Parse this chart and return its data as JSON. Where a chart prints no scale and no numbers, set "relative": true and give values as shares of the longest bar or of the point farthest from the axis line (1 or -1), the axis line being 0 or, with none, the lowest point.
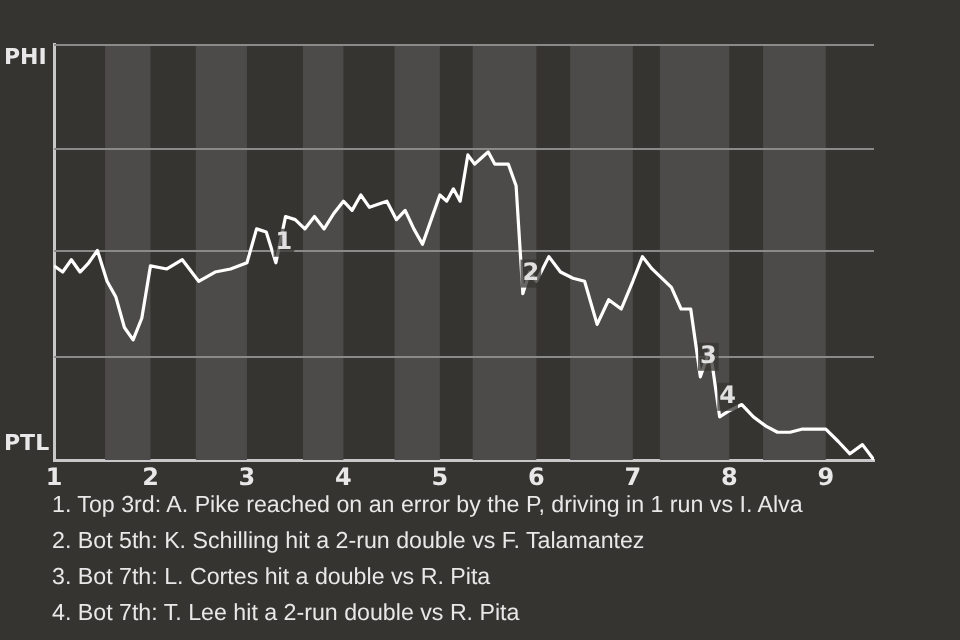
{
  "chart_data": {
    "type": "line",
    "relative": true,
    "x": [
      1,
      1.09,
      1.18,
      1.27,
      1.36,
      1.45,
      1.55,
      1.64,
      1.73,
      1.82,
      1.91,
      2,
      2.17,
      2.33,
      2.5,
      2.67,
      2.83,
      3,
      3.1,
      3.2,
      3.3,
      3.4,
      3.5,
      3.6,
      3.7,
      3.8,
      3.9,
      4,
      4.09,
      4.18,
      4.27,
      4.36,
      4.45,
      4.55,
      4.64,
      4.73,
      4.82,
      4.91,
      5,
      5.07,
      5.14,
      5.21,
      5.29,
      5.36,
      5.43,
      5.5,
      5.57,
      5.64,
      5.71,
      5.79,
      5.86,
      5.93,
      6,
      6.13,
      6.25,
      6.38,
      6.5,
      6.63,
      6.75,
      6.88,
      7,
      7.1,
      7.2,
      7.3,
      7.4,
      7.5,
      7.6,
      7.7,
      7.8,
      7.9,
      8,
      8.13,
      8.25,
      8.38,
      8.5,
      8.63,
      8.75,
      8.88,
      9,
      9.13,
      9.25,
      9.38,
      9.5
    ],
    "series": [
      {
        "color": "#ffffff",
        "values": [
          0.63,
          0.61,
          0.65,
          0.61,
          0.64,
          0.68,
          0.58,
          0.53,
          0.43,
          0.39,
          0.46,
          0.63,
          0.62,
          0.65,
          0.58,
          0.61,
          0.62,
          0.64,
          0.75,
          0.74,
          0.64,
          0.79,
          0.78,
          0.75,
          0.79,
          0.75,
          0.8,
          0.84,
          0.81,
          0.86,
          0.82,
          0.83,
          0.84,
          0.78,
          0.81,
          0.75,
          0.7,
          0.78,
          0.86,
          0.84,
          0.88,
          0.84,
          0.99,
          0.96,
          0.98,
          1,
          0.96,
          0.96,
          0.96,
          0.89,
          0.54,
          0.61,
          0.58,
          0.66,
          0.61,
          0.59,
          0.58,
          0.44,
          0.52,
          0.49,
          0.58,
          0.66,
          0.62,
          0.59,
          0.56,
          0.49,
          0.49,
          0.27,
          0.36,
          0.14,
          0.16,
          0.18,
          0.14,
          0.11,
          0.09,
          0.09,
          0.1,
          0.1,
          0.1,
          0.06,
          0.02,
          0.05,
          0
        ]
      }
    ],
    "xlim": [
      1,
      9.5
    ],
    "xticks": [
      1,
      2,
      3,
      4,
      5,
      6,
      7,
      8,
      9
    ],
    "marker": "none",
    "line_style": "solid",
    "ref_lines": [
      {
        "axis": "y",
        "value": 0.34,
        "color": "#8c8a88"
      },
      {
        "axis": "y",
        "value": 0.68,
        "color": "#8c8a88"
      },
      {
        "axis": "y",
        "value": 1.01,
        "color": "#8c8a88"
      },
      {
        "axis": "y",
        "value": 1.35,
        "color": "#8c8a88"
      }
    ],
    "bands": [
      {
        "axis": "x",
        "from": 1.53,
        "to": 2,
        "color": "#4d4b49"
      },
      {
        "axis": "x",
        "from": 2.47,
        "to": 3,
        "color": "#4d4b49"
      },
      {
        "axis": "x",
        "from": 3.58,
        "to": 4,
        "color": "#4d4b49"
      },
      {
        "axis": "x",
        "from": 4.53,
        "to": 5,
        "color": "#4d4b49"
      },
      {
        "axis": "x",
        "from": 5.34,
        "to": 6,
        "color": "#4d4b49"
      },
      {
        "axis": "x",
        "from": 6.35,
        "to": 7,
        "color": "#4d4b49"
      },
      {
        "axis": "x",
        "from": 7.28,
        "to": 8,
        "color": "#4d4b49"
      },
      {
        "axis": "x",
        "from": 8.35,
        "to": 9,
        "color": "#4d4b49"
      }
    ],
    "annotations": [
      "PHI",
      "PTL",
      {
        "text": "1",
        "x": 3.3,
        "y": 0.64
      },
      {
        "text": "2",
        "x": 5.86,
        "y": 0.54
      },
      {
        "text": "3",
        "x": 7.7,
        "y": 0.27
      },
      {
        "text": "4",
        "x": 7.9,
        "y": 0.14
      },
      "1. Top 3rd: A. Pike reached on an error by the P, driving in 1 run vs I. Alva",
      "2. Bot 5th: K. Schilling hit a 2-run double vs F. Talamantez",
      "3. Bot 7th: L. Cortes hit a double vs R. Pita",
      "4. Bot 7th: T. Lee hit a 2-run double vs R. Pita"
    ]
  }
}
